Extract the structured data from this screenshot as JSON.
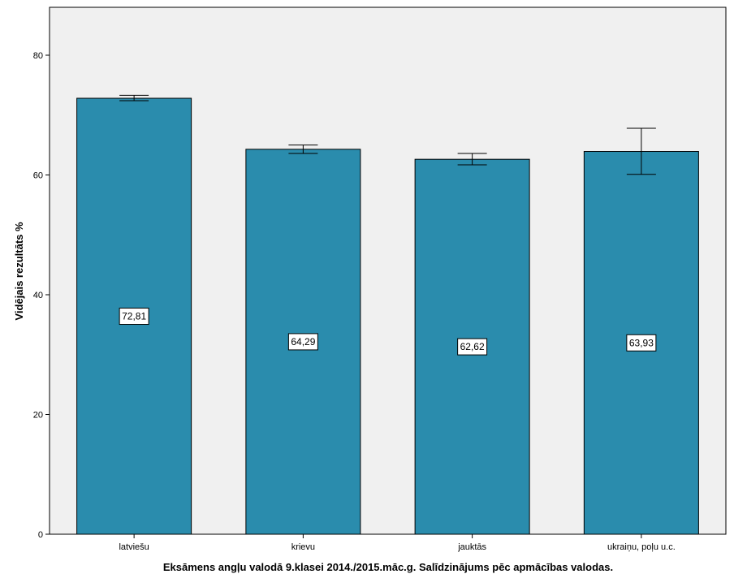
{
  "chart_data": {
    "type": "bar",
    "categories": [
      "latviešu",
      "krievu",
      "jauktās",
      "ukraiņu, poļu u.c."
    ],
    "values": [
      72.81,
      64.29,
      62.62,
      63.93
    ],
    "value_labels": [
      "72,81",
      "64,29",
      "62,62",
      "63,93"
    ],
    "error_bars": [
      {
        "low": 72.4,
        "high": 73.3
      },
      {
        "low": 63.6,
        "high": 65.0
      },
      {
        "low": 61.7,
        "high": 63.6
      },
      {
        "low": 60.1,
        "high": 67.8
      }
    ],
    "xlabel": "Eksāmens angļu valodā 9.klasei 2014./2015.māc.g. Salīdzinājums pēc apmācības valodas.",
    "ylabel": "Vidējais rezultāts %",
    "ylim": [
      0,
      88
    ],
    "yticks": [
      0,
      20,
      40,
      60,
      80
    ],
    "grid": false,
    "colors": {
      "bar": "#2a8cad",
      "plot_background": "#f0f0f0",
      "outline": "#000000"
    }
  }
}
